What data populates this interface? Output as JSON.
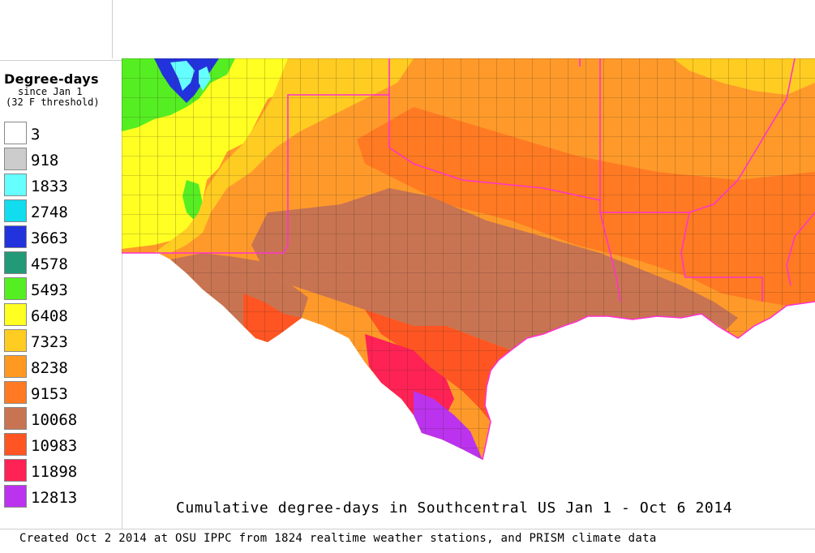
{
  "legend": {
    "title": "Degree-days",
    "subtitle_line1": "since Jan 1",
    "subtitle_line2": "(32 F threshold)",
    "items": [
      {
        "label": "3",
        "color": "#ffffff"
      },
      {
        "label": "918",
        "color": "#cccccc"
      },
      {
        "label": "1833",
        "color": "#66ffff"
      },
      {
        "label": "2748",
        "color": "#11ddee"
      },
      {
        "label": "3663",
        "color": "#2233dd"
      },
      {
        "label": "4578",
        "color": "#229977"
      },
      {
        "label": "5493",
        "color": "#55ee22"
      },
      {
        "label": "6408",
        "color": "#ffff22"
      },
      {
        "label": "7323",
        "color": "#ffcc22"
      },
      {
        "label": "8238",
        "color": "#ff9922"
      },
      {
        "label": "9153",
        "color": "#ff7a22"
      },
      {
        "label": "10068",
        "color": "#c87452"
      },
      {
        "label": "10983",
        "color": "#ff5522"
      },
      {
        "label": "11898",
        "color": "#ff2255"
      },
      {
        "label": "12813",
        "color": "#bb33ee"
      }
    ]
  },
  "map": {
    "title": "Cumulative degree-days in Southcentral US Jan 1 - Oct 6 2014",
    "border_color": "#ff33cc",
    "county_line_color": "#333333"
  },
  "footer": {
    "credit": "Created Oct 2 2014 at OSU IPPC from 1824 realtime weather stations, and PRISM climate data"
  }
}
